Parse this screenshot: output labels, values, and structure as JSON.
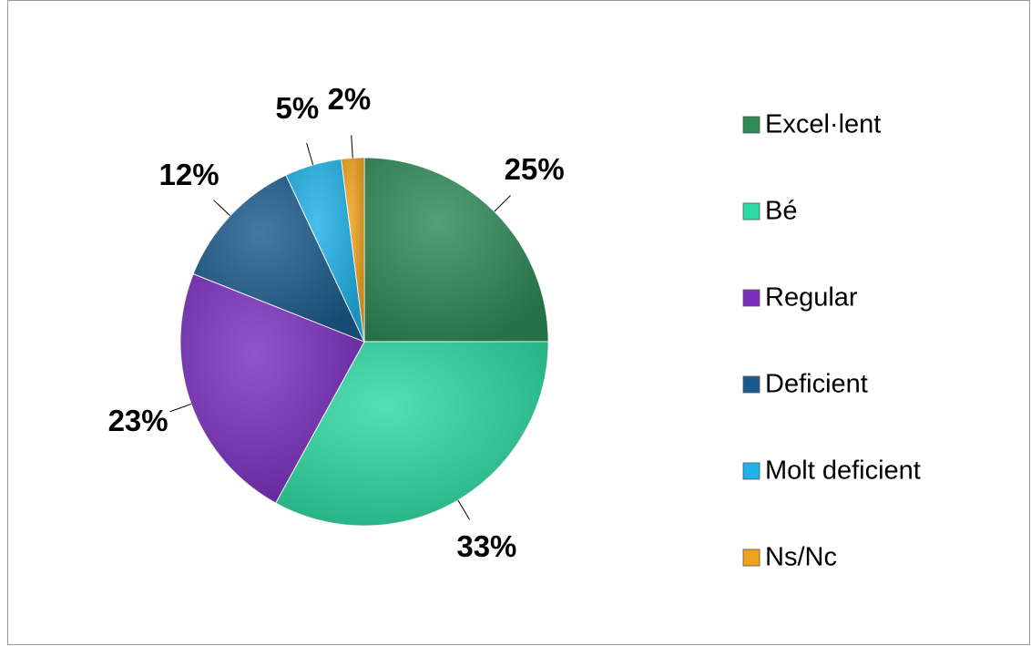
{
  "chart_data": {
    "type": "pie",
    "categories": [
      "Excel·lent",
      "Bé",
      "Regular",
      "Deficient",
      "Molt deficient",
      "Ns/Nc"
    ],
    "values": [
      25,
      33,
      23,
      12,
      5,
      2
    ],
    "value_labels": [
      "25%",
      "33%",
      "23%",
      "12%",
      "5%",
      "2%"
    ],
    "colors": [
      "#2f8a57",
      "#2fd9a2",
      "#7a2fbd",
      "#1b5b8c",
      "#1fb2e8",
      "#f0a21c"
    ],
    "legend": "right"
  }
}
